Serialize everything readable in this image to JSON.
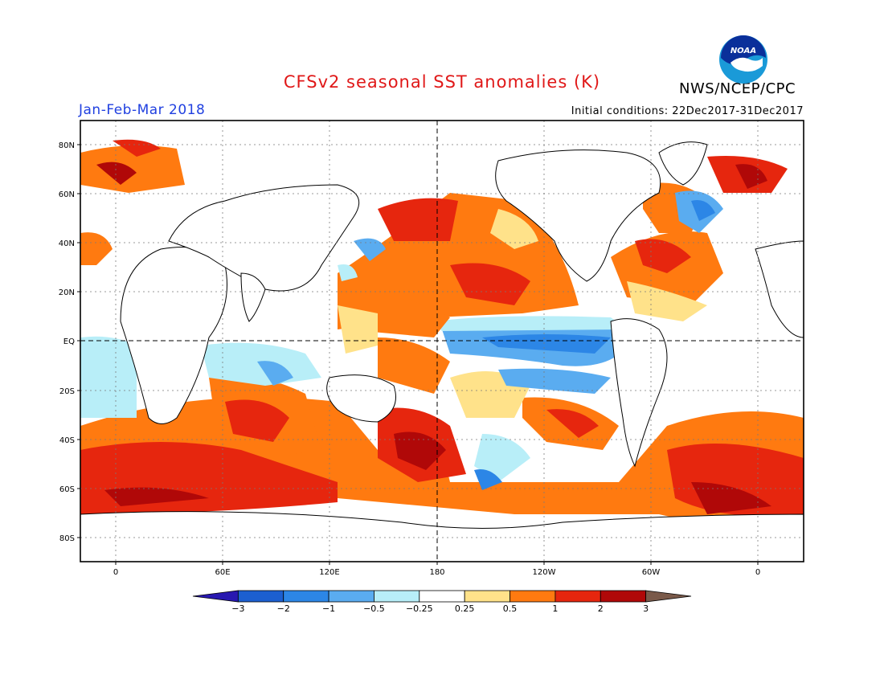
{
  "header": {
    "title": "CFSv2 seasonal SST anomalies (K)",
    "organization": "NWS/NCEP/CPC",
    "logo_text": "NOAA",
    "period": "Jan-Feb-Mar 2018",
    "initial_conditions": "Initial conditions: 22Dec2017-31Dec2017"
  },
  "map": {
    "lat_labels": [
      "80N",
      "60N",
      "40N",
      "20N",
      "EQ",
      "20S",
      "40S",
      "60S",
      "80S"
    ],
    "lon_labels": [
      "0",
      "60E",
      "120E",
      "180",
      "120W",
      "60W",
      "0"
    ]
  },
  "colorbar": {
    "labels": [
      "-3",
      "-2",
      "-1",
      "-0.5",
      "-0.25",
      "0.25",
      "0.5",
      "1",
      "2",
      "3"
    ],
    "colors": [
      "#2818b0",
      "#1c5fd0",
      "#2c86e6",
      "#5aacf0",
      "#b8eef8",
      "#ffffff",
      "#ffe28a",
      "#ff7a10",
      "#e6260e",
      "#b00808",
      "#7a5a4a"
    ]
  }
}
